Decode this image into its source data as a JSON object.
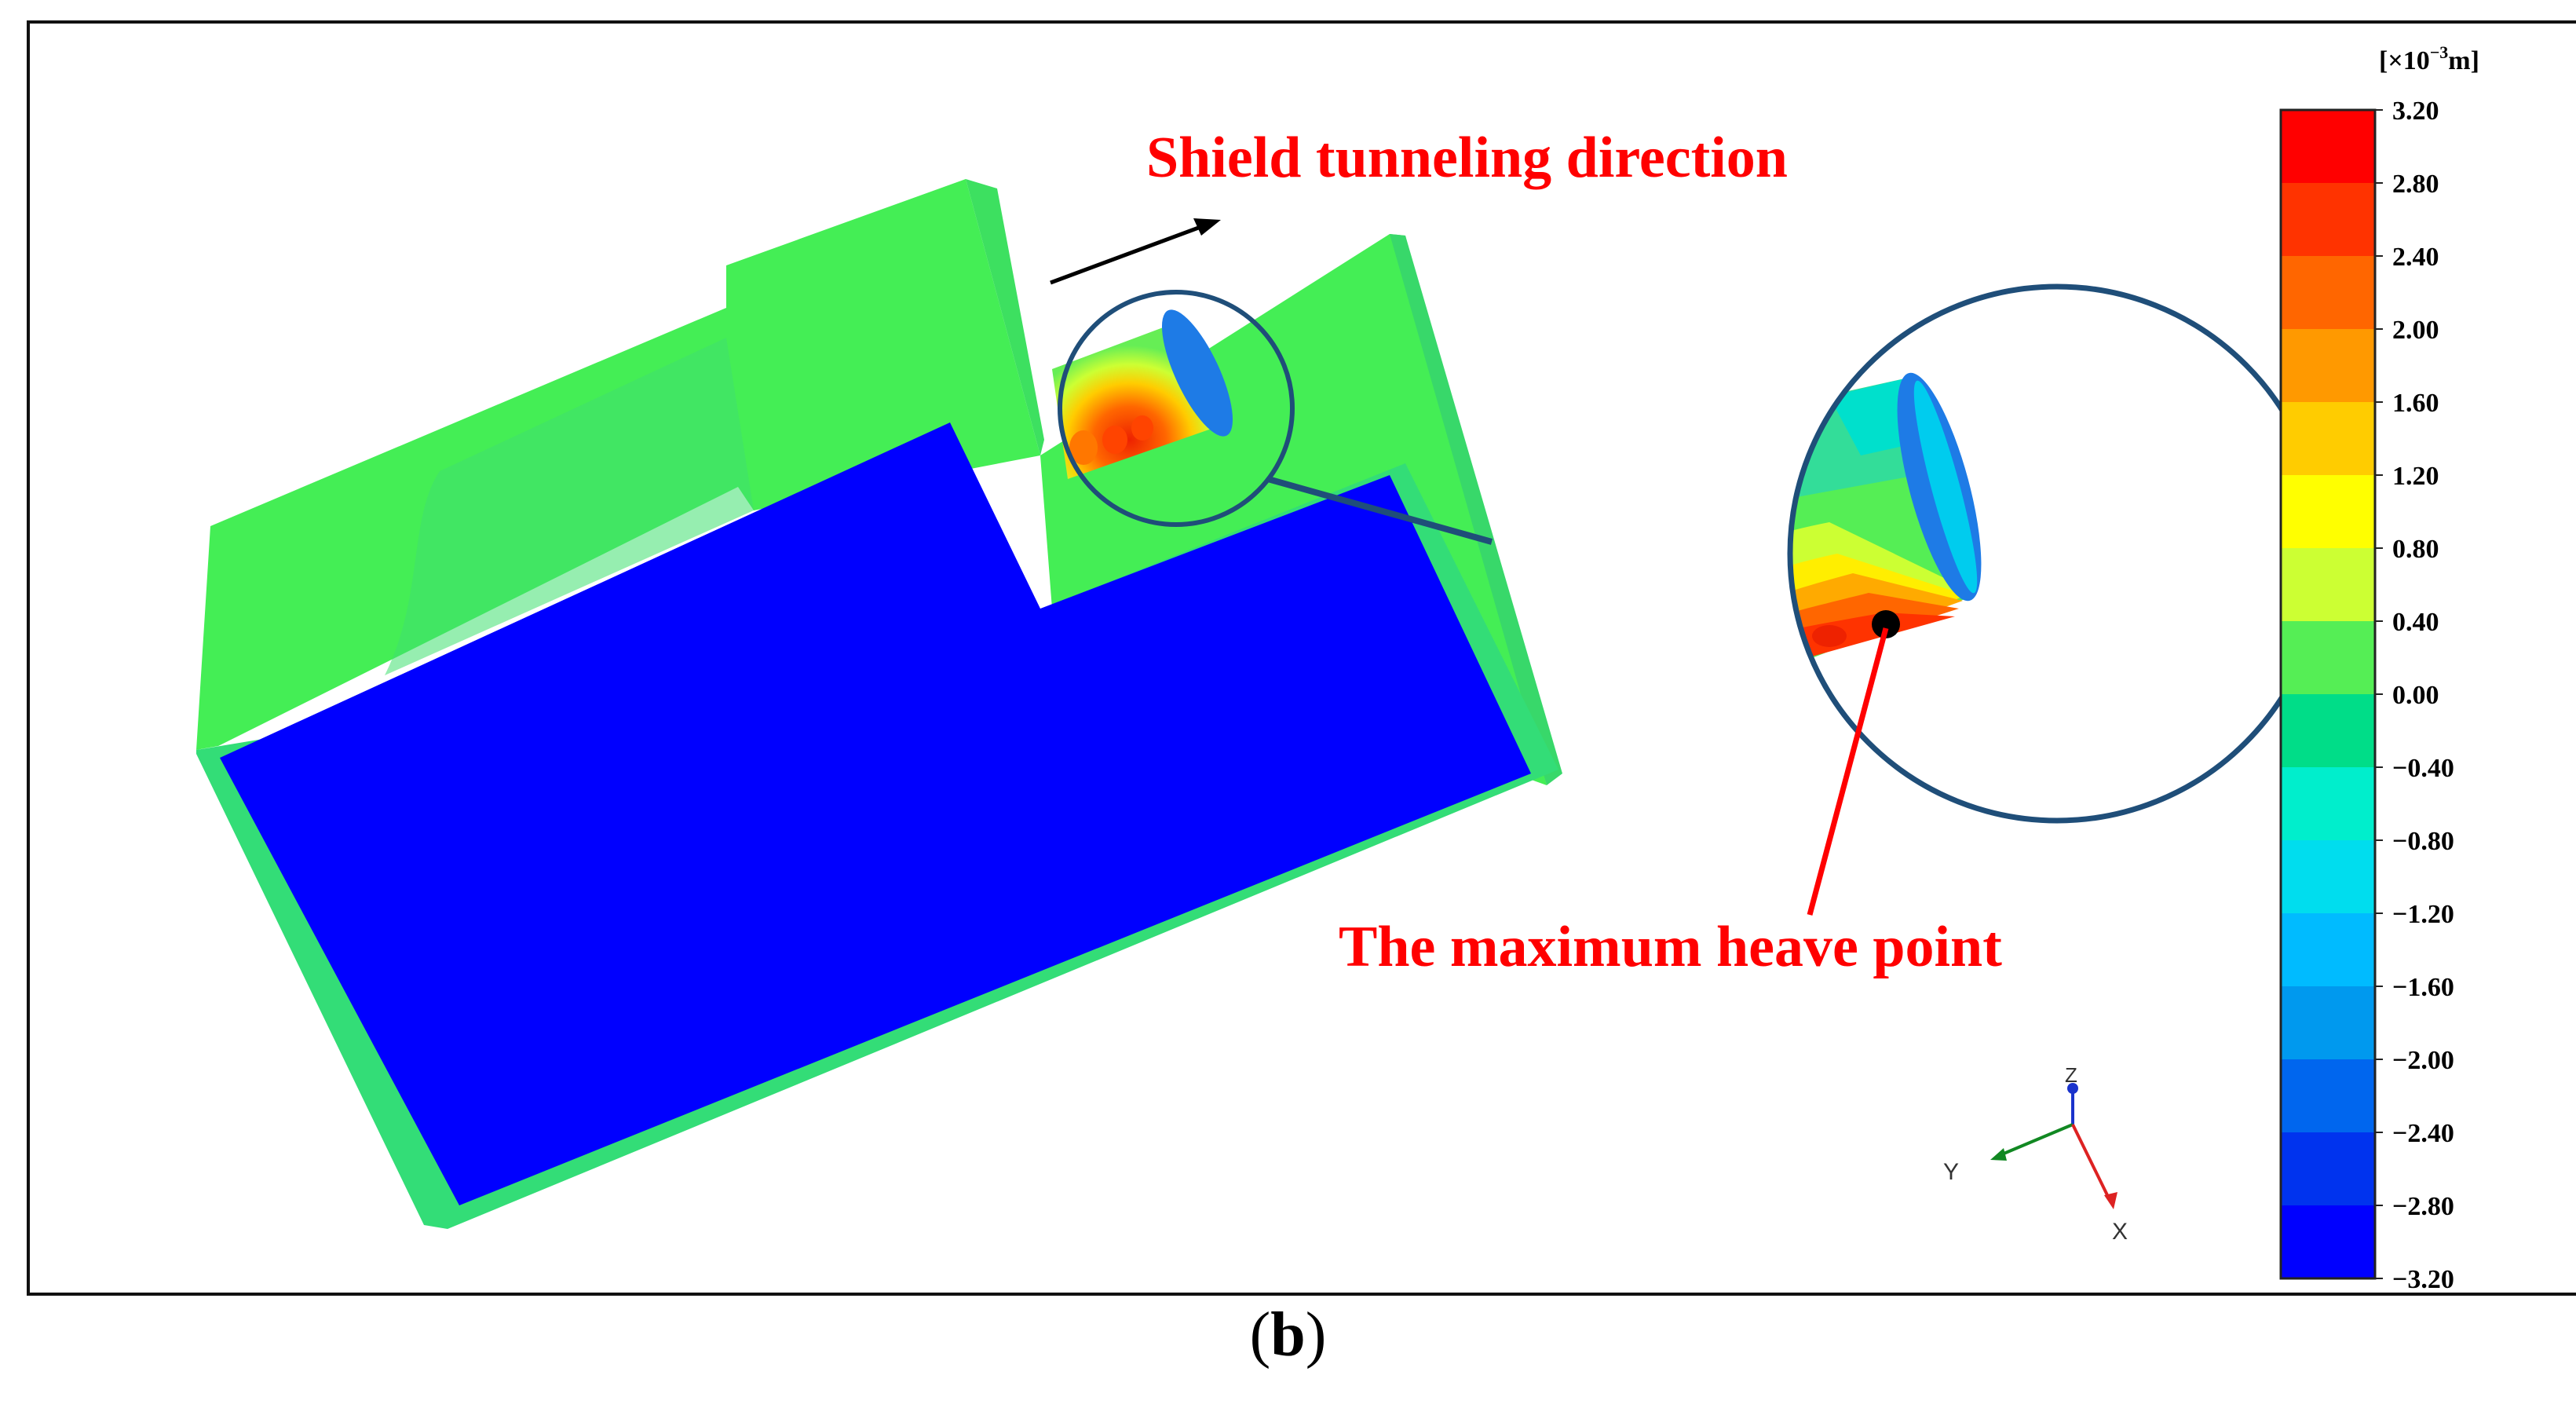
{
  "annotations": {
    "direction_label": "Shield tunneling direction",
    "heave_label": "The maximum heave point"
  },
  "legend": {
    "unit_prefix": "[×10",
    "unit_exponent": "−3",
    "unit_suffix": "m]",
    "ticks": [
      "3.20",
      "2.80",
      "2.40",
      "2.00",
      "1.60",
      "1.20",
      "0.80",
      "0.40",
      "0.00",
      "−0.40",
      "−0.80",
      "−1.20",
      "−1.60",
      "−2.00",
      "−2.40",
      "−2.80",
      "−3.20"
    ],
    "colors": [
      "#ff0000",
      "#ff3300",
      "#ff6600",
      "#ff9900",
      "#ffcc00",
      "#ffff00",
      "#ccff33",
      "#55ee55",
      "#00dd88",
      "#00eecc",
      "#00ddee",
      "#00bbff",
      "#0099ee",
      "#0066ee",
      "#0033ee",
      "#0000ff"
    ]
  },
  "axes_triad": {
    "z": "Z",
    "y": "Y",
    "x": "X"
  },
  "caption": {
    "open": "(",
    "letter": "b",
    "close": ")"
  },
  "colors": {
    "structure_green": "#44ee55",
    "base_blue": "#0000ff",
    "edge_green": "#33dd77",
    "annotation_red": "#ff0000",
    "callout_navy": "#1f4e79"
  }
}
